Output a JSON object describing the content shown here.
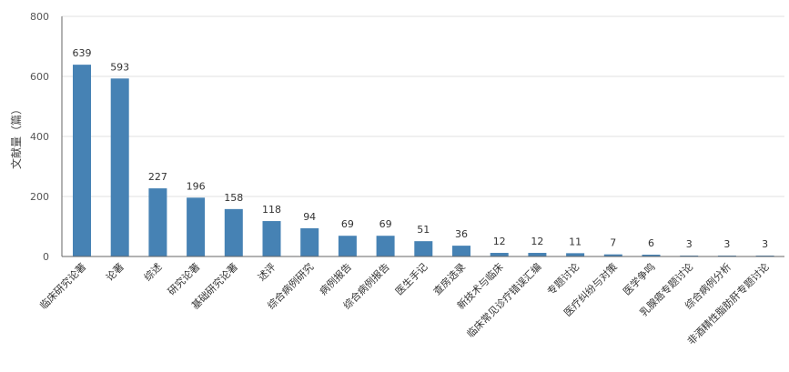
{
  "chart_data": {
    "type": "bar",
    "title": "",
    "xlabel": "",
    "ylabel": "文献量（篇）",
    "ylim": [
      0,
      800
    ],
    "yticks": [
      0,
      200,
      400,
      600,
      800
    ],
    "grid": true,
    "bar_color": "#4682b4",
    "categories": [
      "临床研究论著",
      "论著",
      "综述",
      "研究论著",
      "基础研究论著",
      "述评",
      "综合病例研究",
      "病例报告",
      "综合病例报告",
      "医生手记",
      "查房选录",
      "新技术与临床",
      "临床常见诊疗错误汇编",
      "专题讨论",
      "医疗纠纷与对策",
      "医学争鸣",
      "乳腺癌专题讨论",
      "综合病例分析",
      "非酒精性脂肪肝专题讨论"
    ],
    "values": [
      639,
      593,
      227,
      196,
      158,
      118,
      94,
      69,
      69,
      51,
      36,
      12,
      12,
      11,
      7,
      6,
      3,
      3,
      3
    ]
  }
}
